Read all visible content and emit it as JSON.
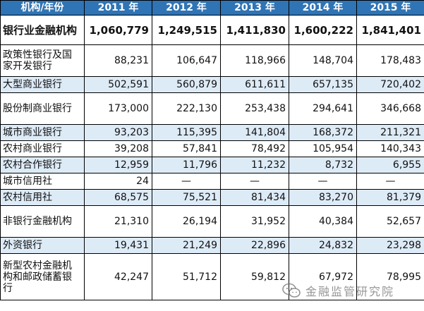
{
  "table": {
    "header": [
      "机构/年份",
      "2011 年",
      "2012 年",
      "2013 年",
      "2014 年",
      "2015 年"
    ],
    "rows": [
      {
        "name": "银行业金融机构",
        "values": [
          "1,060,779",
          "1,249,515",
          "1,411,830",
          "1,600,222",
          "1,841,401"
        ]
      },
      {
        "name": "政策性银行及国家开发银行",
        "values": [
          "88,231",
          "106,647",
          "118,966",
          "148,704",
          "178,483"
        ]
      },
      {
        "name": "大型商业银行",
        "values": [
          "502,591",
          "560,879",
          "611,611",
          "657,135",
          "720,402"
        ]
      },
      {
        "name": "股份制商业银行",
        "values": [
          "173,000",
          "222,130",
          "253,438",
          "294,641",
          "346,668"
        ]
      },
      {
        "name": "城市商业银行",
        "values": [
          "93,203",
          "115,395",
          "141,804",
          "168,372",
          "211,321"
        ]
      },
      {
        "name": "农村商业银行",
        "values": [
          "39,208",
          "57,841",
          "78,492",
          "105,954",
          "140,343"
        ]
      },
      {
        "name": "农村合作银行",
        "values": [
          "12,959",
          "11,796",
          "11,232",
          "8,732",
          "6,955"
        ]
      },
      {
        "name": "城市信用社",
        "values": [
          "24",
          "—",
          "—",
          "—",
          "—"
        ]
      },
      {
        "name": "农村信用社",
        "values": [
          "68,575",
          "75,521",
          "81,434",
          "83,270",
          "81,379"
        ]
      },
      {
        "name": "非银行金融机构",
        "values": [
          "21,310",
          "26,194",
          "31,952",
          "40,384",
          "52,657"
        ]
      },
      {
        "name": "外资银行",
        "values": [
          "19,431",
          "21,249",
          "22,896",
          "24,832",
          "23,298"
        ]
      },
      {
        "name": "新型农村金融机构和邮政储蓄银行",
        "values": [
          "42,247",
          "51,712",
          "59,812",
          "67,972",
          "78,995"
        ]
      }
    ]
  },
  "watermark": {
    "icon": "wechat-icon",
    "text": "金融监管研究院"
  },
  "colors": {
    "header_bg": "#2f74b5",
    "header_text": "#ffffff",
    "shaded_row_bg": "#ddebf7",
    "border": "#000000"
  }
}
